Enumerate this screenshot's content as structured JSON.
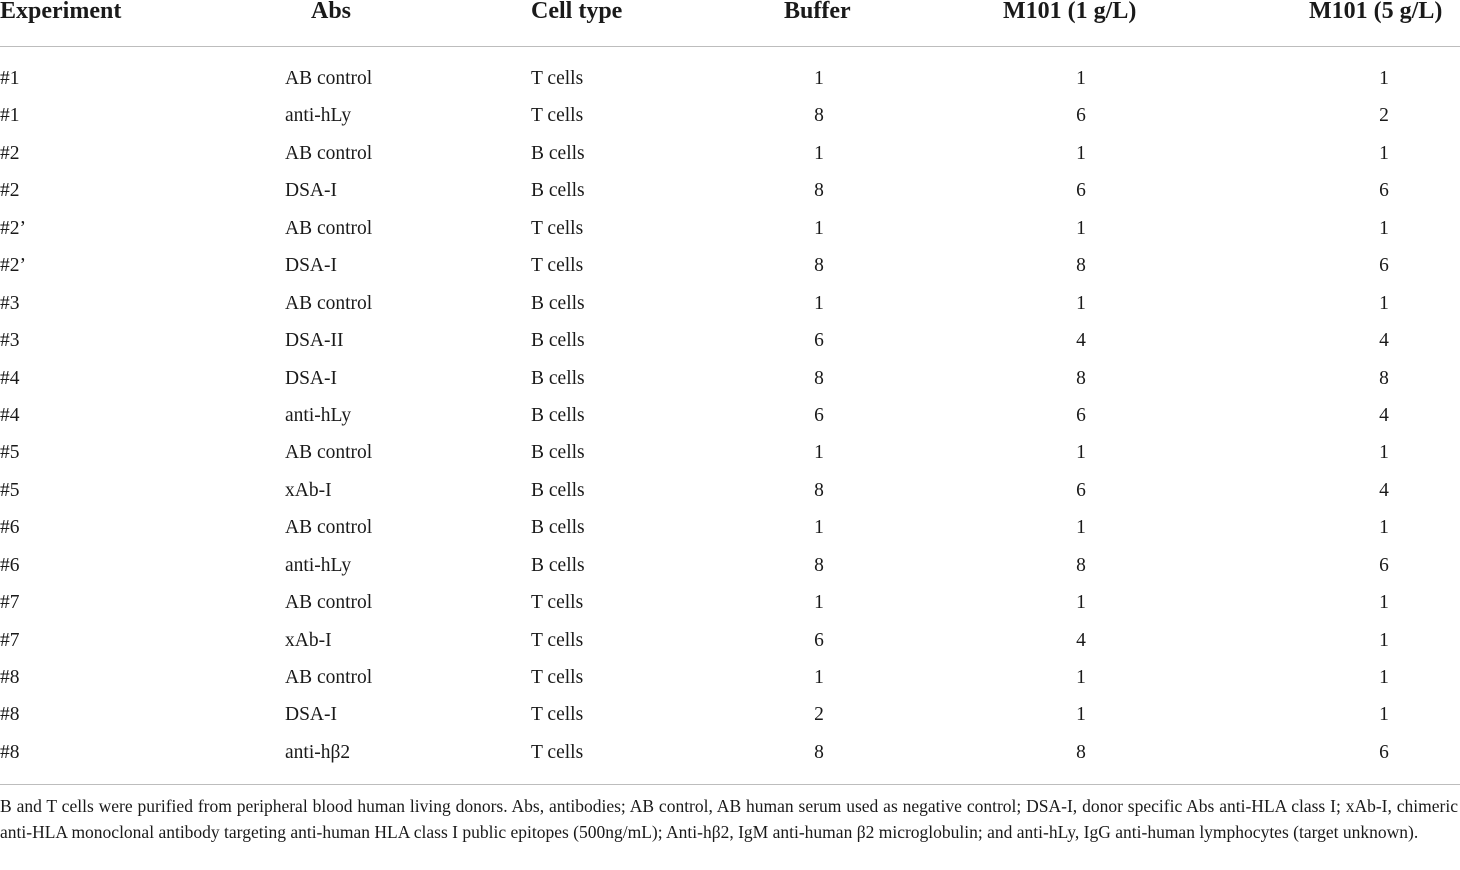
{
  "table": {
    "headers": [
      "Experiment",
      "Abs",
      "Cell type",
      "Buffer",
      "M101 (1 g/L)",
      "M101 (5 g/L)"
    ],
    "rows": [
      [
        "#1",
        "AB control",
        "T cells",
        "1",
        "1",
        "1"
      ],
      [
        "#1",
        "anti-hLy",
        "T cells",
        "8",
        "6",
        "2"
      ],
      [
        "#2",
        "AB control",
        "B cells",
        "1",
        "1",
        "1"
      ],
      [
        "#2",
        "DSA-I",
        "B cells",
        "8",
        "6",
        "6"
      ],
      [
        "#2’",
        "AB control",
        "T cells",
        "1",
        "1",
        "1"
      ],
      [
        "#2’",
        "DSA-I",
        "T cells",
        "8",
        "8",
        "6"
      ],
      [
        "#3",
        "AB control",
        "B cells",
        "1",
        "1",
        "1"
      ],
      [
        "#3",
        "DSA-II",
        "B cells",
        "6",
        "4",
        "4"
      ],
      [
        "#4",
        "DSA-I",
        "B cells",
        "8",
        "8",
        "8"
      ],
      [
        "#4",
        "anti-hLy",
        "B cells",
        "6",
        "6",
        "4"
      ],
      [
        "#5",
        "AB control",
        "B cells",
        "1",
        "1",
        "1"
      ],
      [
        "#5",
        "xAb-I",
        "B cells",
        "8",
        "6",
        "4"
      ],
      [
        "#6",
        "AB control",
        "B cells",
        "1",
        "1",
        "1"
      ],
      [
        "#6",
        "anti-hLy",
        "B cells",
        "8",
        "8",
        "6"
      ],
      [
        "#7",
        "AB control",
        "T cells",
        "1",
        "1",
        "1"
      ],
      [
        "#7",
        "xAb-I",
        "T cells",
        "6",
        "4",
        "1"
      ],
      [
        "#8",
        "AB control",
        "T cells",
        "1",
        "1",
        "1"
      ],
      [
        "#8",
        "DSA-I",
        "T cells",
        "2",
        "1",
        "1"
      ],
      [
        "#8",
        "anti-hβ2",
        "T cells",
        "8",
        "8",
        "6"
      ]
    ]
  },
  "footnote": "B and T cells were purified from peripheral blood human living donors. Abs, antibodies; AB control, AB human serum used as negative control; DSA-I, donor specific Abs anti-HLA class I; xAb-I, chimeric anti-HLA monoclonal antibody targeting anti-human HLA class I public epitopes (500ng/mL); Anti-hβ2, IgM anti-human β2 microglobulin; and anti-hLy, IgG anti-human lymphocytes (target unknown)."
}
